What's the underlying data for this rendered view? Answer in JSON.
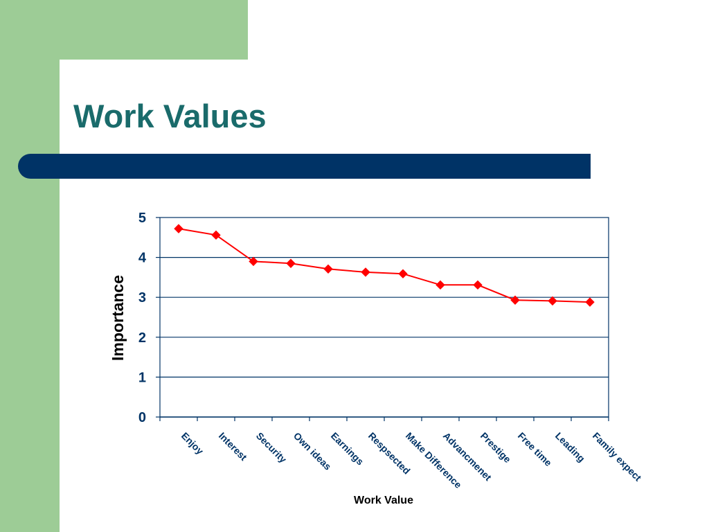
{
  "slide": {
    "title": "Work Values",
    "colors": {
      "side_band": "#9dcc96",
      "title_text": "#1a6b6b",
      "title_bar": "#003366"
    }
  },
  "chart_data": {
    "type": "line",
    "categories": [
      "Enjoy",
      "Interest",
      "Security",
      "Own ideas",
      "Earnings",
      "Respsected",
      "Make Difference",
      "Advancmenet",
      "Prestige",
      "Free time",
      "Leading",
      "Family expect"
    ],
    "series": [
      {
        "values": [
          4.72,
          4.56,
          3.9,
          3.85,
          3.71,
          3.63,
          3.59,
          3.31,
          3.31,
          2.93,
          2.91,
          2.88
        ],
        "color": "#ff0000",
        "marker": "diamond"
      }
    ],
    "xlabel": "Work Value",
    "ylabel": "Importance",
    "ylim": [
      0,
      5
    ],
    "yticks": [
      0,
      1,
      2,
      3,
      4,
      5
    ],
    "grid": true,
    "axis_color": "#003366",
    "legend": false
  }
}
